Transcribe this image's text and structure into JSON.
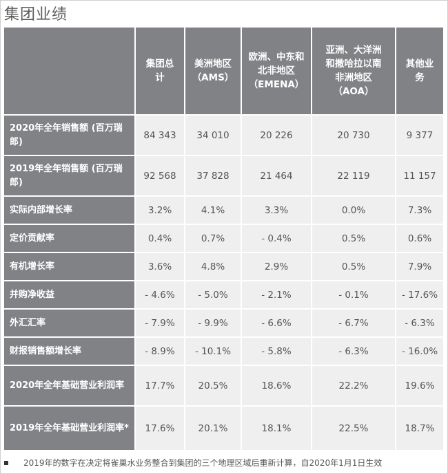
{
  "title": "集团业绩",
  "headers": [
    "",
    "集团总计",
    "美洲地区（AMS）",
    "欧洲、中东和北非地区（EMENA）",
    "亚洲、大洋洲和撒哈拉以南非洲地区（AOA）",
    "其他业务"
  ],
  "rows": [
    {
      "label": "2020年全年销售额 (百万瑞郎)",
      "values": [
        "84 343",
        "34 010",
        "20 226",
        "20 730",
        "9 377"
      ]
    },
    {
      "label": "2019年全年销售额 (百万瑞郎)",
      "values": [
        "92 568",
        "37 828",
        "21 464",
        "22 119",
        "11 157"
      ]
    },
    {
      "label": "实际内部增长率",
      "values": [
        "3.2%",
        "4.1%",
        "3.3%",
        "0.0%",
        "7.3%"
      ]
    },
    {
      "label": "定价贡献率",
      "values": [
        "0.4%",
        "0.7%",
        "- 0.4%",
        "0.5%",
        "0.6%"
      ]
    },
    {
      "label": "有机增长率",
      "values": [
        "3.6%",
        "4.8%",
        "2.9%",
        "0.5%",
        "7.9%"
      ]
    },
    {
      "label": "并购净收益",
      "values": [
        "- 4.6%",
        "- 5.0%",
        "- 2.1%",
        "- 0.1%",
        "- 17.6%"
      ]
    },
    {
      "label": "外汇汇率",
      "values": [
        "- 7.9%",
        "- 9.9%",
        "- 6.6%",
        "- 6.7%",
        "- 6.3%"
      ]
    },
    {
      "label": "财报销售额增长率",
      "values": [
        "- 8.9%",
        "- 10.1%",
        "- 5.8%",
        "- 6.3%",
        "- 16.0%"
      ]
    },
    {
      "label": "2020年全年基础营业利润率",
      "values": [
        "17.7%",
        "20.5%",
        "18.6%",
        "22.2%",
        "19.6%"
      ]
    },
    {
      "label": "2019年全年基础营业利润率*",
      "values": [
        "17.6%",
        "20.1%",
        "18.1%",
        "22.5%",
        "18.7%"
      ]
    }
  ],
  "footnote": "2019年的数字在决定将雀巢水业务整合到集团的三个地理区域后重新计算，自2020年1月1日生效"
}
